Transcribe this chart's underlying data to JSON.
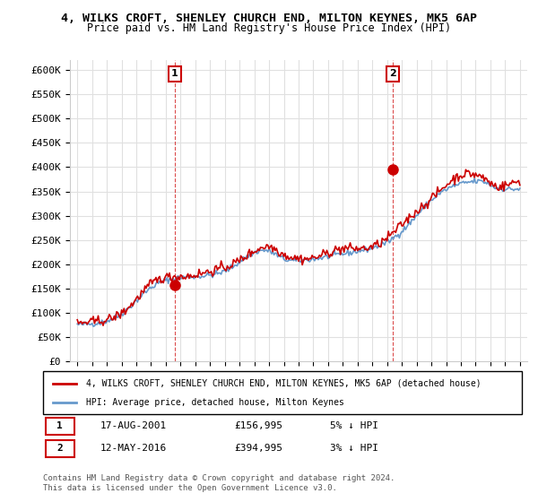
{
  "title_line1": "4, WILKS CROFT, SHENLEY CHURCH END, MILTON KEYNES, MK5 6AP",
  "title_line2": "Price paid vs. HM Land Registry's House Price Index (HPI)",
  "ylabel_ticks": [
    "£0",
    "£50K",
    "£100K",
    "£150K",
    "£200K",
    "£250K",
    "£300K",
    "£350K",
    "£400K",
    "£450K",
    "£500K",
    "£550K",
    "£600K"
  ],
  "ytick_values": [
    0,
    50000,
    100000,
    150000,
    200000,
    250000,
    300000,
    350000,
    400000,
    450000,
    500000,
    550000,
    600000
  ],
  "xlim_start": 1994.5,
  "xlim_end": 2025.5,
  "ylim": [
    0,
    620000
  ],
  "sale1": {
    "year": 2001.6,
    "price": 156995,
    "label": "1"
  },
  "sale2": {
    "year": 2016.4,
    "price": 394995,
    "label": "2"
  },
  "sale1_info": "17-AUG-2001    £156,995    5% ↓ HPI",
  "sale2_info": "12-MAY-2016    £394,995    3% ↓ HPI",
  "legend_property": "4, WILKS CROFT, SHENLEY CHURCH END, MILTON KEYNES, MK5 6AP (detached house)",
  "legend_hpi": "HPI: Average price, detached house, Milton Keynes",
  "footnote": "Contains HM Land Registry data © Crown copyright and database right 2024.\nThis data is licensed under the Open Government Licence v3.0.",
  "property_color": "#cc0000",
  "hpi_color": "#6699cc",
  "background_color": "#ffffff",
  "grid_color": "#e0e0e0"
}
